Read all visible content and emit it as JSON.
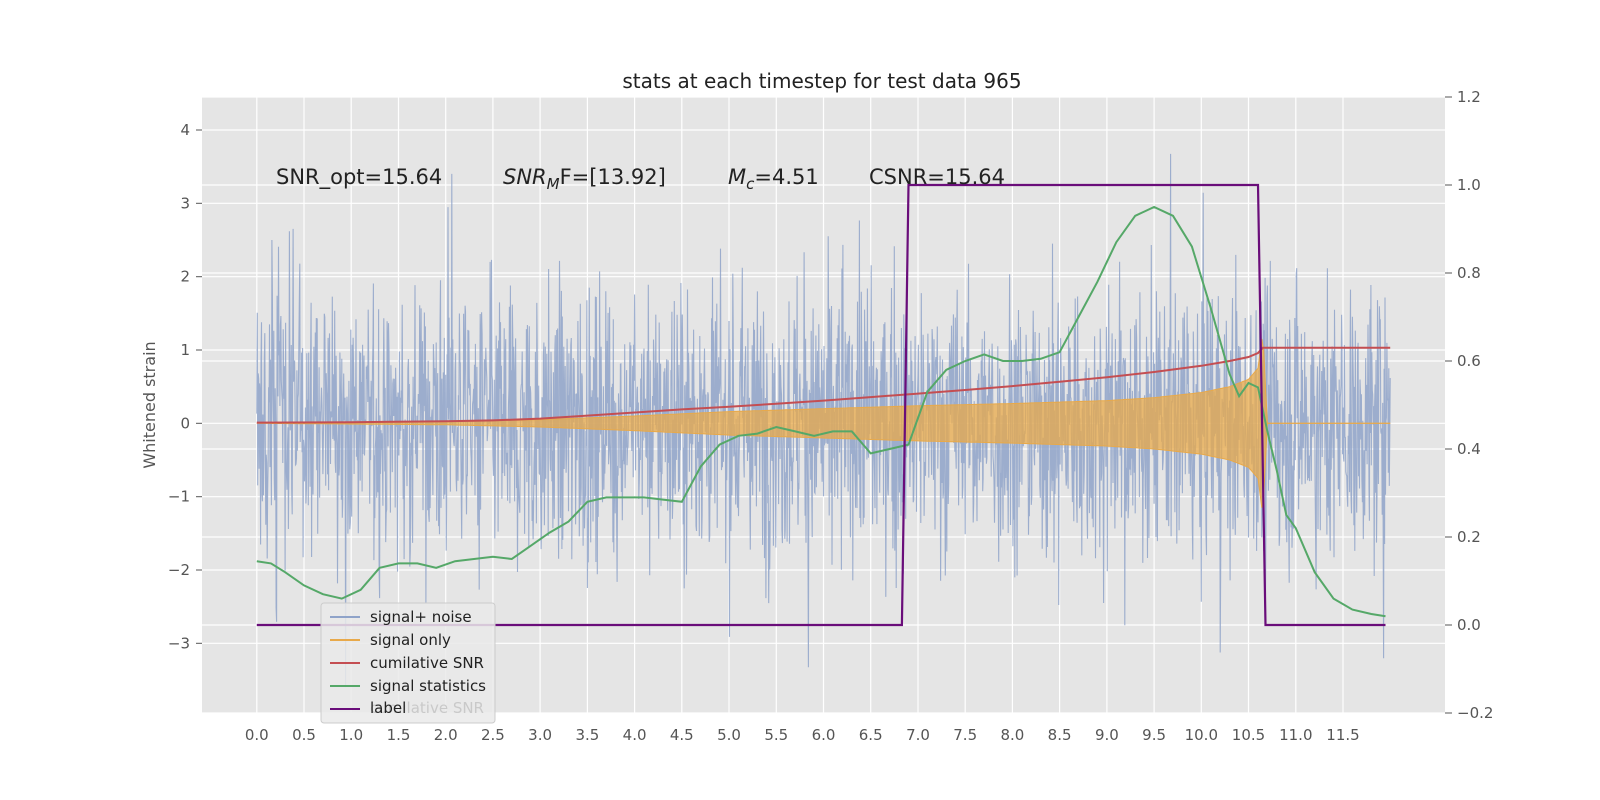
{
  "chart_data": {
    "type": "line",
    "title": "stats at each timestep for test data 965",
    "ylabel": "Whitened strain",
    "xlabel": "",
    "xlim": [
      -0.58,
      12.58
    ],
    "ylim": [
      -3.95,
      4.45
    ],
    "y2lim": [
      -0.2,
      1.2
    ],
    "grid": true,
    "x_ticks": [
      "0.0",
      "0.5",
      "1.0",
      "1.5",
      "2.0",
      "2.5",
      "3.0",
      "3.5",
      "4.0",
      "4.5",
      "5.0",
      "5.5",
      "6.0",
      "6.5",
      "7.0",
      "7.5",
      "8.0",
      "8.5",
      "9.0",
      "9.5",
      "10.0",
      "10.5",
      "11.0",
      "11.5"
    ],
    "y_ticks": [
      "4",
      "3",
      "2",
      "1",
      "0",
      "−1",
      "−2",
      "−3"
    ],
    "y2_ticks": [
      "1.2",
      "1.0",
      "0.8",
      "0.6",
      "0.4",
      "0.2",
      "0.0",
      "−0.2"
    ],
    "annotations": [
      "SNR_opt=15.64",
      "SNR",
      "M",
      "F=[13.92]",
      "c",
      "=4.51",
      "CSNR=15.64"
    ],
    "legend_position": "lower-left",
    "legend_ghost_text": "cumilative SNR",
    "series": [
      {
        "name": "signal+ noise",
        "axis": "left",
        "color": "#8FA3C9",
        "note": "dense noisy waveform, amplitude roughly ±2.5 with peaks near ±4, over x 0 to 12"
      },
      {
        "name": "signal only",
        "axis": "left",
        "color": "#E8A94A",
        "envelope": {
          "x": [
            0,
            2,
            3,
            4,
            5,
            6,
            7,
            8,
            9,
            9.5,
            10,
            10.3,
            10.5,
            10.6,
            10.65,
            10.7,
            12
          ],
          "amp": [
            0.0,
            0.02,
            0.05,
            0.1,
            0.16,
            0.2,
            0.24,
            0.27,
            0.31,
            0.35,
            0.42,
            0.5,
            0.6,
            0.75,
            1.25,
            0.0,
            0.0
          ]
        }
      },
      {
        "name": "cumilative SNR",
        "axis": "right",
        "color": "#C44E52",
        "x": [
          0,
          1,
          2,
          2.5,
          3,
          3.5,
          4,
          4.5,
          5,
          5.5,
          6,
          6.5,
          7,
          7.5,
          8,
          8.5,
          9,
          9.5,
          10,
          10.3,
          10.5,
          10.6,
          10.65,
          11,
          11.5,
          12
        ],
        "y": [
          0.46,
          0.461,
          0.463,
          0.465,
          0.469,
          0.476,
          0.483,
          0.49,
          0.496,
          0.503,
          0.51,
          0.518,
          0.526,
          0.534,
          0.543,
          0.553,
          0.563,
          0.575,
          0.589,
          0.6,
          0.609,
          0.618,
          0.63,
          0.63,
          0.63,
          0.63
        ]
      },
      {
        "name": "signal statistics",
        "axis": "right",
        "color": "#55A868",
        "x": [
          0,
          0.15,
          0.3,
          0.5,
          0.7,
          0.9,
          1.1,
          1.3,
          1.5,
          1.7,
          1.9,
          2.1,
          2.3,
          2.5,
          2.7,
          2.9,
          3.1,
          3.3,
          3.5,
          3.7,
          3.9,
          4.1,
          4.3,
          4.5,
          4.7,
          4.9,
          5.1,
          5.3,
          5.5,
          5.7,
          5.9,
          6.1,
          6.3,
          6.5,
          6.7,
          6.9,
          7.1,
          7.3,
          7.5,
          7.7,
          7.9,
          8.1,
          8.3,
          8.5,
          8.7,
          8.9,
          9.1,
          9.3,
          9.5,
          9.7,
          9.9,
          10.1,
          10.3,
          10.4,
          10.5,
          10.6,
          10.7,
          10.8,
          10.9,
          11.0,
          11.2,
          11.4,
          11.6,
          11.8,
          11.95
        ],
        "y": [
          0.145,
          0.14,
          0.12,
          0.09,
          0.07,
          0.06,
          0.08,
          0.13,
          0.14,
          0.14,
          0.13,
          0.145,
          0.15,
          0.155,
          0.15,
          0.18,
          0.21,
          0.235,
          0.28,
          0.29,
          0.29,
          0.29,
          0.285,
          0.28,
          0.36,
          0.41,
          0.43,
          0.435,
          0.45,
          0.44,
          0.43,
          0.44,
          0.44,
          0.39,
          0.4,
          0.41,
          0.53,
          0.58,
          0.6,
          0.615,
          0.6,
          0.6,
          0.605,
          0.62,
          0.7,
          0.78,
          0.87,
          0.93,
          0.95,
          0.93,
          0.86,
          0.72,
          0.57,
          0.52,
          0.55,
          0.54,
          0.44,
          0.35,
          0.25,
          0.22,
          0.12,
          0.06,
          0.035,
          0.025,
          0.02
        ]
      },
      {
        "name": "label",
        "axis": "right",
        "color": "#6A0D7A",
        "x": [
          0,
          6.83,
          6.9,
          10.6,
          10.68,
          11.95
        ],
        "y": [
          0,
          0,
          1,
          1,
          0,
          0
        ]
      }
    ]
  }
}
